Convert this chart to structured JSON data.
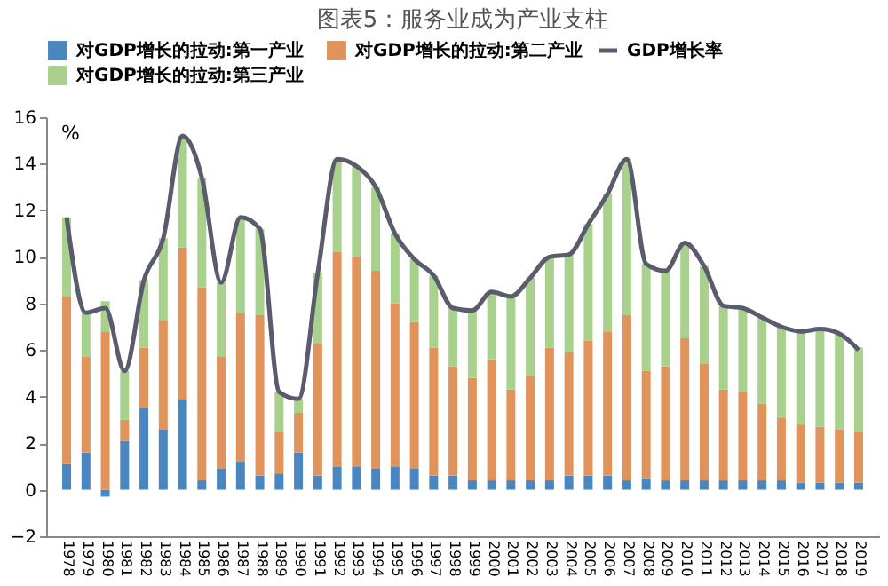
{
  "chart_data": {
    "type": "bar",
    "title": "图表5：服务业成为产业支柱",
    "ylabel": "%",
    "stacked": true,
    "legend": "top",
    "grid": false,
    "categories": [
      "1978",
      "1979",
      "1980",
      "1981",
      "1982",
      "1983",
      "1984",
      "1985",
      "1986",
      "1987",
      "1988",
      "1989",
      "1990",
      "1991",
      "1992",
      "1993",
      "1994",
      "1995",
      "1996",
      "1997",
      "1998",
      "1999",
      "2000",
      "2001",
      "2002",
      "2003",
      "2004",
      "2005",
      "2006",
      "2007",
      "2008",
      "2009",
      "2010",
      "2011",
      "2012",
      "2013",
      "2014",
      "2015",
      "2016",
      "2017",
      "2018",
      "2019"
    ],
    "ylim": [
      -2,
      16
    ],
    "yticks": [
      -2,
      0,
      2,
      4,
      6,
      8,
      10,
      12,
      14,
      16
    ],
    "series": [
      {
        "name": "对GDP增长的拉动:第一产业",
        "color": "#4a86c0",
        "values": [
          1.1,
          1.6,
          -0.3,
          2.1,
          3.5,
          2.6,
          3.9,
          0.4,
          0.9,
          1.2,
          0.6,
          0.7,
          1.6,
          0.6,
          1.0,
          1.0,
          0.9,
          1.0,
          0.9,
          0.6,
          0.6,
          0.4,
          0.4,
          0.4,
          0.4,
          0.4,
          0.6,
          0.6,
          0.6,
          0.4,
          0.5,
          0.4,
          0.4,
          0.4,
          0.4,
          0.4,
          0.4,
          0.4,
          0.3,
          0.3,
          0.3,
          0.3
        ]
      },
      {
        "name": "对GDP增长的拉动:第二产业",
        "color": "#e0935a",
        "values": [
          7.2,
          4.1,
          6.8,
          0.9,
          2.6,
          4.7,
          6.5,
          8.3,
          4.8,
          6.4,
          6.9,
          1.8,
          1.7,
          5.7,
          9.2,
          9.0,
          8.5,
          7.0,
          6.3,
          5.5,
          4.7,
          4.4,
          5.2,
          3.9,
          4.5,
          5.7,
          5.3,
          5.8,
          6.2,
          7.1,
          4.6,
          4.9,
          6.1,
          5.0,
          3.9,
          3.8,
          3.3,
          2.7,
          2.5,
          2.4,
          2.3,
          2.2
        ]
      },
      {
        "name": "对GDP增长的拉动:第三产业",
        "color": "#a9d18e",
        "values": [
          3.4,
          1.9,
          1.3,
          2.1,
          2.9,
          3.5,
          4.8,
          4.7,
          3.2,
          4.1,
          3.7,
          1.7,
          0.6,
          3.0,
          4.0,
          3.9,
          3.6,
          3.0,
          2.7,
          3.1,
          2.5,
          2.9,
          2.9,
          4.0,
          4.2,
          3.9,
          4.2,
          5.0,
          5.9,
          6.7,
          4.6,
          4.1,
          4.1,
          4.2,
          3.6,
          3.6,
          3.7,
          3.9,
          4.0,
          4.2,
          4.1,
          3.6
        ]
      },
      {
        "name": "GDP增长率",
        "type": "line",
        "color": "#5b5b6e",
        "values": [
          11.7,
          7.6,
          7.8,
          5.1,
          9.0,
          10.8,
          15.2,
          13.4,
          8.9,
          11.7,
          11.2,
          4.2,
          3.9,
          9.3,
          14.2,
          13.9,
          13.0,
          11.0,
          9.9,
          9.2,
          7.8,
          7.7,
          8.5,
          8.3,
          9.1,
          10.0,
          10.1,
          11.4,
          12.7,
          14.2,
          9.7,
          9.4,
          10.6,
          9.6,
          7.9,
          7.8,
          7.4,
          7.0,
          6.8,
          6.9,
          6.7,
          6.0
        ]
      }
    ]
  }
}
